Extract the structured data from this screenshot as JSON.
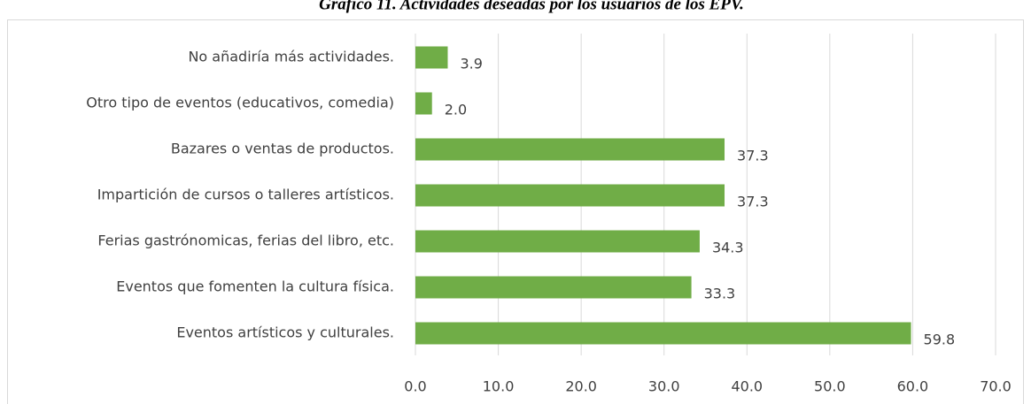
{
  "chart_data": {
    "type": "bar",
    "orientation": "horizontal",
    "title": "Gráfico 11. Actividades deseadas por los usuarios de los EPV.",
    "categories": [
      "No añadiría más actividades.",
      "Otro tipo de eventos (educativos, comedia)",
      "Bazares o ventas de productos.",
      "Impartición de cursos o talleres artísticos.",
      "Ferias gastrónomicas, ferias del libro, etc.",
      "Eventos que fomenten la cultura física.",
      "Eventos artísticos y culturales."
    ],
    "values": [
      3.9,
      2.0,
      37.3,
      37.3,
      34.3,
      33.3,
      59.8
    ],
    "value_labels": [
      "3.9",
      "2.0",
      "37.3",
      "37.3",
      "34.3",
      "33.3",
      "59.8"
    ],
    "color": "#70ad47",
    "xlim": [
      0,
      70
    ],
    "xticks": [
      {
        "value": 0,
        "label": "0.0"
      },
      {
        "value": 10,
        "label": "10.0"
      },
      {
        "value": 20,
        "label": "20.0"
      },
      {
        "value": 30,
        "label": "30.0"
      },
      {
        "value": 40,
        "label": "40.0"
      },
      {
        "value": 50,
        "label": "50.0"
      },
      {
        "value": 60,
        "label": "60.0"
      },
      {
        "value": 70,
        "label": "70.0"
      }
    ],
    "grid": true
  }
}
